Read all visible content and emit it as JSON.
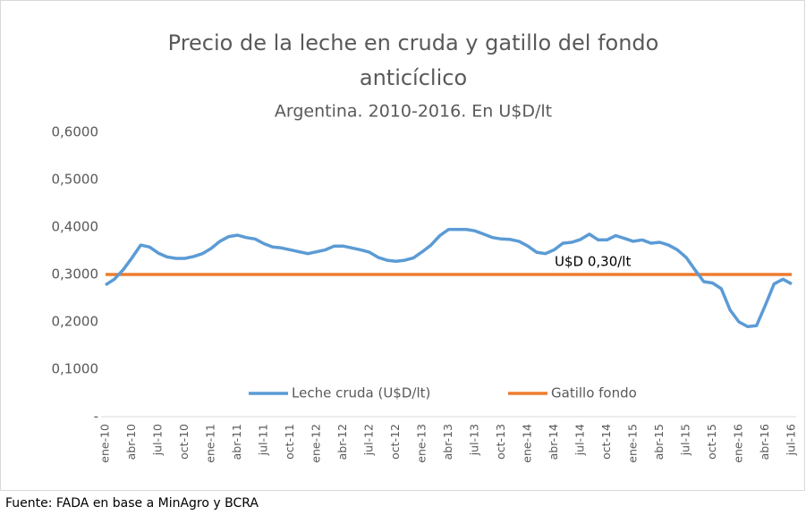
{
  "chart_data": {
    "type": "line",
    "title": [
      "Precio de la leche en cruda y gatillo del fondo",
      "anticíclico"
    ],
    "subtitle": "Argentina. 2010-2016. En U$D/lt",
    "source": "Fuente: FADA en base a MinAgro y BCRA",
    "annotation": "U$D 0,30/lt",
    "categories": [
      "ene-10",
      null,
      null,
      "abr-10",
      null,
      null,
      "jul-10",
      null,
      null,
      "oct-10",
      null,
      null,
      "ene-11",
      null,
      null,
      "abr-11",
      null,
      null,
      "jul-11",
      null,
      null,
      "oct-11",
      null,
      null,
      "ene-12",
      null,
      null,
      "abr-12",
      null,
      null,
      "jul-12",
      null,
      null,
      "oct-12",
      null,
      null,
      "ene-13",
      null,
      null,
      "abr-13",
      null,
      null,
      "jul-13",
      null,
      null,
      "oct-13",
      null,
      null,
      "ene-14",
      null,
      null,
      "abr-14",
      null,
      null,
      "jul-14",
      null,
      null,
      "oct-14",
      null,
      null,
      "ene-15",
      null,
      null,
      "abr-15",
      null,
      null,
      "jul-15",
      null,
      null,
      "oct-15",
      null,
      null,
      "ene-16",
      null,
      null,
      "abr-16",
      null,
      null,
      "jul-16"
    ],
    "series": [
      {
        "name": "Leche cruda (U$D/lt)",
        "color": "#5b9bd5",
        "values": [
          0.278,
          0.29,
          0.31,
          0.335,
          0.362,
          0.358,
          0.345,
          0.337,
          0.334,
          0.334,
          0.338,
          0.344,
          0.355,
          0.37,
          0.38,
          0.383,
          0.378,
          0.375,
          0.365,
          0.358,
          0.356,
          0.352,
          0.348,
          0.344,
          0.348,
          0.352,
          0.36,
          0.36,
          0.356,
          0.352,
          0.347,
          0.336,
          0.33,
          0.328,
          0.33,
          0.335,
          0.348,
          0.362,
          0.382,
          0.395,
          0.395,
          0.395,
          0.392,
          0.385,
          0.378,
          0.375,
          0.374,
          0.37,
          0.36,
          0.347,
          0.344,
          0.352,
          0.366,
          0.368,
          0.374,
          0.385,
          0.373,
          0.373,
          0.382,
          0.376,
          0.37,
          0.373,
          0.366,
          0.368,
          0.362,
          0.352,
          0.336,
          0.31,
          0.285,
          0.282,
          0.27,
          0.225,
          0.2,
          0.19,
          0.192,
          0.235,
          0.28,
          0.29,
          0.28
        ]
      },
      {
        "name": "Gatillo fondo",
        "color": "#ed7d31",
        "values": [
          0.3,
          0.3,
          0.3,
          0.3,
          0.3,
          0.3,
          0.3,
          0.3,
          0.3,
          0.3,
          0.3,
          0.3,
          0.3,
          0.3,
          0.3,
          0.3,
          0.3,
          0.3,
          0.3,
          0.3,
          0.3,
          0.3,
          0.3,
          0.3,
          0.3,
          0.3,
          0.3,
          0.3,
          0.3,
          0.3,
          0.3,
          0.3,
          0.3,
          0.3,
          0.3,
          0.3,
          0.3,
          0.3,
          0.3,
          0.3,
          0.3,
          0.3,
          0.3,
          0.3,
          0.3,
          0.3,
          0.3,
          0.3,
          0.3,
          0.3,
          0.3,
          0.3,
          0.3,
          0.3,
          0.3,
          0.3,
          0.3,
          0.3,
          0.3,
          0.3,
          0.3,
          0.3,
          0.3,
          0.3,
          0.3,
          0.3,
          0.3,
          0.3,
          0.3,
          0.3,
          0.3,
          0.3,
          0.3,
          0.3,
          0.3,
          0.3,
          0.3,
          0.3,
          0.3
        ]
      }
    ],
    "ylim": [
      0,
      0.6
    ],
    "yticks": [
      {
        "value": 0,
        "label": "-"
      },
      {
        "value": 0.1,
        "label": "0,1000"
      },
      {
        "value": 0.2,
        "label": "0,2000"
      },
      {
        "value": 0.3,
        "label": "0,3000"
      },
      {
        "value": 0.4,
        "label": "0,4000"
      },
      {
        "value": 0.5,
        "label": "0,5000"
      },
      {
        "value": 0.6,
        "label": "0,6000"
      }
    ],
    "grid": false,
    "legend": "bottom"
  }
}
